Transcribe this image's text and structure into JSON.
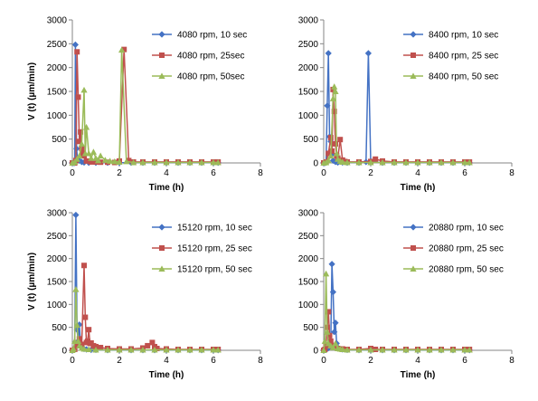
{
  "chart_data": [
    {
      "type": "line",
      "xlabel": "Time (h)",
      "ylabel": "V (t) (µm/min)",
      "xlim": [
        0,
        8
      ],
      "ylim": [
        0,
        3000
      ],
      "xticks": [
        0,
        2,
        4,
        6,
        8
      ],
      "yticks": [
        0,
        500,
        1000,
        1500,
        2000,
        2500,
        3000
      ],
      "grid": false,
      "legend_position": "top-right",
      "series": [
        {
          "name": "4080 rpm, 10 sec",
          "color": "#4472C4",
          "marker": "diamond",
          "x": [
            0,
            0.05,
            0.1,
            0.13,
            0.18,
            0.22,
            0.3,
            0.4,
            0.5,
            0.7,
            1.0,
            1.5,
            2.0,
            2.5,
            3.0,
            3.5,
            4.0,
            4.5,
            5.0,
            5.5,
            6.0,
            6.2
          ],
          "y": [
            0,
            0,
            0,
            2480,
            300,
            100,
            50,
            20,
            10,
            5,
            5,
            5,
            5,
            5,
            5,
            5,
            5,
            5,
            5,
            5,
            5,
            5
          ]
        },
        {
          "name": "4080 rpm, 25sec",
          "color": "#C0504D",
          "marker": "square",
          "x": [
            0,
            0.05,
            0.1,
            0.15,
            0.2,
            0.25,
            0.3,
            0.35,
            0.4,
            0.45,
            0.5,
            0.6,
            0.8,
            1.0,
            1.2,
            1.5,
            1.8,
            2.0,
            2.2,
            2.4,
            2.6,
            3.0,
            3.5,
            4.0,
            4.5,
            5.0,
            5.5,
            6.0,
            6.2
          ],
          "y": [
            0,
            0,
            0,
            50,
            2330,
            1380,
            450,
            650,
            300,
            200,
            150,
            40,
            20,
            20,
            15,
            15,
            10,
            40,
            2380,
            50,
            20,
            20,
            20,
            20,
            20,
            20,
            20,
            20,
            20
          ]
        },
        {
          "name": "4080 rpm, 50sec",
          "color": "#9BBB59",
          "marker": "triangle",
          "x": [
            0,
            0.1,
            0.2,
            0.3,
            0.4,
            0.5,
            0.55,
            0.6,
            0.7,
            0.8,
            0.9,
            1.0,
            1.1,
            1.2,
            1.4,
            1.6,
            1.8,
            2.0,
            2.1,
            2.3,
            2.6,
            3.0,
            3.5,
            4.0,
            4.5,
            5.0,
            5.5,
            6.0,
            6.2
          ],
          "y": [
            0,
            20,
            80,
            150,
            400,
            1530,
            200,
            750,
            200,
            100,
            230,
            100,
            50,
            150,
            60,
            40,
            30,
            20,
            2370,
            30,
            10,
            10,
            10,
            10,
            10,
            10,
            10,
            10,
            10
          ]
        }
      ]
    },
    {
      "type": "line",
      "xlabel": "Time (h)",
      "ylabel": "",
      "xlim": [
        0,
        8
      ],
      "ylim": [
        0,
        3000
      ],
      "xticks": [
        0,
        2,
        4,
        6,
        8
      ],
      "yticks": [
        0,
        500,
        1000,
        1500,
        2000,
        2500,
        3000
      ],
      "grid": false,
      "legend_position": "top-right",
      "series": [
        {
          "name": "8400 rpm, 10 sec",
          "color": "#4472C4",
          "marker": "diamond",
          "x": [
            0,
            0.05,
            0.1,
            0.15,
            0.2,
            0.25,
            0.3,
            0.35,
            0.4,
            0.5,
            0.6,
            0.8,
            1.0,
            1.5,
            1.8,
            1.9,
            2.0,
            2.5,
            3.0,
            3.5,
            4.0,
            4.5,
            5.0,
            5.5,
            6.0,
            6.2
          ],
          "y": [
            0,
            0,
            20,
            1200,
            2300,
            550,
            450,
            180,
            50,
            20,
            10,
            10,
            5,
            5,
            20,
            2300,
            20,
            5,
            5,
            5,
            5,
            5,
            5,
            5,
            5,
            5
          ]
        },
        {
          "name": "8400 rpm, 25 sec",
          "color": "#C0504D",
          "marker": "square",
          "x": [
            0,
            0.1,
            0.2,
            0.3,
            0.35,
            0.4,
            0.45,
            0.5,
            0.55,
            0.6,
            0.7,
            0.8,
            0.9,
            1.0,
            1.5,
            2.0,
            2.2,
            2.5,
            3.0,
            3.5,
            4.0,
            4.5,
            5.0,
            5.5,
            6.0,
            6.2
          ],
          "y": [
            0,
            20,
            200,
            530,
            250,
            1540,
            1080,
            400,
            150,
            100,
            490,
            60,
            30,
            20,
            20,
            30,
            80,
            40,
            20,
            20,
            20,
            20,
            20,
            20,
            20,
            20
          ]
        },
        {
          "name": "8400 rpm, 50 sec",
          "color": "#9BBB59",
          "marker": "triangle",
          "x": [
            0,
            0.1,
            0.2,
            0.3,
            0.4,
            0.45,
            0.5,
            0.55,
            0.6,
            0.7,
            0.8,
            1.0,
            1.5,
            2.0,
            2.5,
            3.0,
            3.5,
            4.0,
            4.5,
            5.0,
            5.5,
            6.0,
            6.2
          ],
          "y": [
            0,
            10,
            50,
            150,
            1350,
            1600,
            1500,
            200,
            80,
            40,
            20,
            10,
            10,
            10,
            10,
            10,
            10,
            10,
            10,
            10,
            10,
            10,
            10
          ]
        }
      ]
    },
    {
      "type": "line",
      "xlabel": "Time (h)",
      "ylabel": "V (t) (µm/min)",
      "xlim": [
        0,
        8
      ],
      "ylim": [
        0,
        3000
      ],
      "xticks": [
        0,
        2,
        4,
        6,
        8
      ],
      "yticks": [
        0,
        500,
        1000,
        1500,
        2000,
        2500,
        3000
      ],
      "grid": false,
      "legend_position": "top-right",
      "series": [
        {
          "name": "15120 rpm, 10 sec",
          "color": "#4472C4",
          "marker": "diamond",
          "x": [
            0,
            0.1,
            0.15,
            0.2,
            0.25,
            0.3,
            0.35,
            0.4,
            0.5,
            0.6,
            0.8,
            1.0,
            1.5,
            2.0,
            2.5,
            3.0,
            3.5,
            4.0,
            4.5,
            5.0,
            5.5,
            6.0,
            6.2
          ],
          "y": [
            0,
            50,
            2950,
            450,
            200,
            560,
            150,
            60,
            30,
            20,
            10,
            10,
            5,
            5,
            5,
            5,
            5,
            5,
            5,
            5,
            5,
            5,
            5
          ]
        },
        {
          "name": "15120 rpm, 25 sec",
          "color": "#C0504D",
          "marker": "square",
          "x": [
            0,
            0.1,
            0.2,
            0.3,
            0.4,
            0.5,
            0.55,
            0.6,
            0.65,
            0.7,
            0.75,
            0.8,
            0.9,
            1.0,
            1.2,
            1.5,
            2.0,
            2.5,
            3.0,
            3.2,
            3.4,
            3.5,
            3.6,
            4.0,
            4.5,
            5.0,
            5.5,
            6.0,
            6.2
          ],
          "y": [
            0,
            20,
            100,
            250,
            130,
            1850,
            720,
            170,
            200,
            450,
            150,
            160,
            100,
            80,
            60,
            40,
            30,
            30,
            50,
            100,
            170,
            80,
            40,
            30,
            20,
            20,
            20,
            20,
            20
          ]
        },
        {
          "name": "15120 rpm, 50 sec",
          "color": "#9BBB59",
          "marker": "triangle",
          "x": [
            0,
            0.05,
            0.1,
            0.15,
            0.2,
            0.25,
            0.3,
            0.4,
            0.5,
            0.7,
            1.0,
            1.5,
            2.0,
            2.5,
            3.0,
            3.5,
            4.0,
            4.5,
            5.0,
            5.5,
            6.0,
            6.2
          ],
          "y": [
            0,
            30,
            200,
            1330,
            550,
            200,
            100,
            50,
            30,
            20,
            10,
            10,
            10,
            10,
            10,
            10,
            10,
            10,
            10,
            10,
            10,
            10
          ]
        }
      ]
    },
    {
      "type": "line",
      "xlabel": "Time (h)",
      "ylabel": "",
      "xlim": [
        0,
        8
      ],
      "ylim": [
        0,
        3000
      ],
      "xticks": [
        0,
        2,
        4,
        6,
        8
      ],
      "yticks": [
        0,
        500,
        1000,
        1500,
        2000,
        2500,
        3000
      ],
      "grid": false,
      "legend_position": "top-right",
      "series": [
        {
          "name": "20880 rpm, 10 sec",
          "color": "#4472C4",
          "marker": "diamond",
          "x": [
            0,
            0.1,
            0.2,
            0.3,
            0.35,
            0.4,
            0.45,
            0.5,
            0.55,
            0.6,
            0.7,
            0.8,
            1.0,
            1.5,
            2.0,
            2.5,
            3.0,
            3.5,
            4.0,
            4.5,
            5.0,
            5.5,
            6.0,
            6.2
          ],
          "y": [
            0,
            10,
            50,
            150,
            1880,
            1270,
            400,
            600,
            150,
            60,
            30,
            20,
            10,
            5,
            5,
            5,
            5,
            5,
            5,
            5,
            5,
            5,
            5,
            5
          ]
        },
        {
          "name": "20880 rpm, 25 sec",
          "color": "#C0504D",
          "marker": "square",
          "x": [
            0,
            0.05,
            0.1,
            0.15,
            0.2,
            0.25,
            0.3,
            0.35,
            0.4,
            0.5,
            0.6,
            0.8,
            1.0,
            1.5,
            2.0,
            2.2,
            2.5,
            3.0,
            3.5,
            4.0,
            4.5,
            5.0,
            5.5,
            6.0,
            6.2
          ],
          "y": [
            0,
            20,
            100,
            500,
            840,
            320,
            200,
            100,
            80,
            60,
            40,
            30,
            20,
            20,
            40,
            20,
            20,
            20,
            20,
            20,
            20,
            20,
            20,
            20,
            20
          ]
        },
        {
          "name": "20880 rpm, 50 sec",
          "color": "#9BBB59",
          "marker": "triangle",
          "x": [
            0,
            0.05,
            0.1,
            0.15,
            0.2,
            0.3,
            0.4,
            0.5,
            0.6,
            0.7,
            0.8,
            1.0,
            1.5,
            2.0,
            2.5,
            3.0,
            3.5,
            4.0,
            4.5,
            5.0,
            5.5,
            6.0,
            6.2
          ],
          "y": [
            0,
            200,
            1670,
            400,
            150,
            100,
            60,
            150,
            40,
            30,
            20,
            10,
            10,
            10,
            10,
            10,
            10,
            10,
            10,
            10,
            10,
            10,
            10
          ]
        }
      ]
    }
  ]
}
